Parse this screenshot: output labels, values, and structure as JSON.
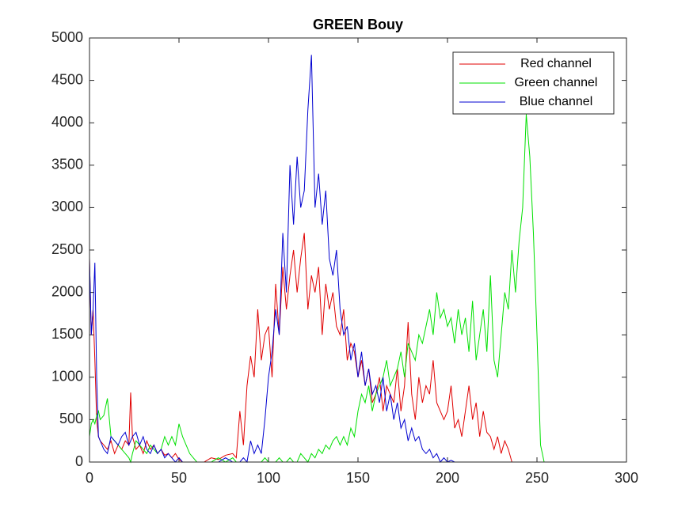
{
  "chart_data": {
    "type": "line",
    "title": "GREEN Bouy",
    "x": [
      0,
      1,
      2,
      3,
      4,
      5,
      6,
      8,
      10,
      12,
      14,
      16,
      18,
      20,
      22,
      23,
      24,
      26,
      28,
      30,
      32,
      34,
      36,
      38,
      40,
      42,
      44,
      46,
      48,
      50,
      52,
      54,
      56,
      58,
      60,
      64,
      68,
      72,
      76,
      80,
      82,
      84,
      86,
      88,
      90,
      92,
      94,
      96,
      98,
      100,
      102,
      104,
      106,
      108,
      110,
      112,
      114,
      116,
      118,
      120,
      122,
      124,
      126,
      128,
      130,
      132,
      134,
      136,
      138,
      140,
      142,
      144,
      146,
      148,
      150,
      152,
      154,
      156,
      158,
      160,
      162,
      164,
      166,
      168,
      170,
      172,
      174,
      176,
      178,
      180,
      182,
      184,
      186,
      188,
      190,
      192,
      194,
      196,
      198,
      200,
      202,
      204,
      206,
      208,
      210,
      212,
      214,
      216,
      218,
      220,
      222,
      224,
      226,
      228,
      230,
      232,
      234,
      236,
      238,
      240,
      242,
      244,
      246,
      248,
      250,
      252,
      254,
      256
    ],
    "series": [
      {
        "name": "Red channel",
        "color": "#e00000",
        "values": [
          2400,
          1500,
          1800,
          1200,
          500,
          300,
          250,
          200,
          150,
          250,
          100,
          200,
          150,
          250,
          200,
          820,
          300,
          150,
          200,
          100,
          250,
          150,
          200,
          100,
          150,
          80,
          100,
          50,
          100,
          30,
          0,
          0,
          0,
          0,
          0,
          0,
          50,
          30,
          80,
          100,
          50,
          600,
          200,
          900,
          1250,
          1000,
          1800,
          1200,
          1500,
          1600,
          1000,
          2100,
          1500,
          2300,
          1800,
          2200,
          2500,
          2000,
          2400,
          2700,
          1800,
          2200,
          2000,
          2300,
          1500,
          2100,
          1800,
          2000,
          1600,
          1500,
          1800,
          1200,
          1400,
          1300,
          1000,
          1200,
          900,
          1100,
          700,
          800,
          1000,
          600,
          900,
          800,
          700,
          1100,
          600,
          900,
          1650,
          800,
          500,
          1000,
          700,
          900,
          800,
          1200,
          700,
          600,
          500,
          600,
          900,
          400,
          500,
          300,
          600,
          900,
          500,
          700,
          300,
          600,
          350,
          300,
          150,
          300,
          100,
          250,
          150,
          0,
          0,
          0,
          0,
          0,
          0,
          0,
          0,
          0,
          0,
          0
        ]
      },
      {
        "name": "Green channel",
        "color": "#00e000",
        "values": [
          300,
          450,
          500,
          450,
          550,
          600,
          500,
          550,
          750,
          300,
          250,
          200,
          150,
          100,
          50,
          0,
          100,
          250,
          200,
          150,
          100,
          200,
          150,
          100,
          150,
          300,
          200,
          300,
          200,
          450,
          300,
          200,
          100,
          50,
          0,
          0,
          0,
          50,
          0,
          50,
          0,
          0,
          0,
          0,
          0,
          0,
          0,
          0,
          50,
          0,
          0,
          0,
          50,
          0,
          0,
          50,
          0,
          0,
          100,
          50,
          0,
          100,
          50,
          150,
          100,
          200,
          150,
          250,
          300,
          200,
          300,
          200,
          400,
          300,
          600,
          800,
          700,
          900,
          600,
          800,
          900,
          1000,
          1200,
          900,
          1000,
          1100,
          1300,
          1000,
          1400,
          1300,
          1200,
          1500,
          1400,
          1600,
          1800,
          1500,
          2000,
          1700,
          1800,
          1600,
          1700,
          1400,
          1800,
          1500,
          1700,
          1300,
          1900,
          1200,
          1500,
          1800,
          1300,
          2200,
          1200,
          1000,
          1500,
          2000,
          1800,
          2500,
          2000,
          2600,
          3000,
          4100,
          3600,
          2700,
          1500,
          200,
          0,
          0
        ]
      },
      {
        "name": "Blue channel",
        "color": "#0000d0",
        "values": [
          2400,
          1500,
          1800,
          2350,
          1000,
          300,
          250,
          150,
          100,
          300,
          250,
          200,
          300,
          350,
          200,
          250,
          300,
          350,
          200,
          300,
          150,
          100,
          200,
          100,
          150,
          50,
          100,
          50,
          0,
          50,
          0,
          0,
          0,
          0,
          0,
          0,
          0,
          0,
          50,
          0,
          0,
          0,
          50,
          0,
          250,
          100,
          200,
          100,
          500,
          1000,
          1300,
          1800,
          1500,
          2700,
          2000,
          3500,
          2800,
          3600,
          3000,
          3200,
          4150,
          4800,
          3000,
          3400,
          2800,
          3200,
          2400,
          2200,
          2500,
          1800,
          1500,
          1600,
          1200,
          1400,
          1000,
          1300,
          900,
          1100,
          800,
          900,
          700,
          1000,
          600,
          800,
          500,
          700,
          400,
          500,
          250,
          400,
          250,
          300,
          150,
          100,
          150,
          50,
          100,
          0,
          50,
          0,
          20,
          0,
          0,
          0,
          0,
          0,
          0,
          0,
          0,
          0,
          0,
          0,
          0,
          0,
          0,
          0,
          0,
          0,
          0,
          0,
          0,
          0,
          0,
          0,
          0,
          0,
          0,
          0
        ]
      }
    ],
    "xlim": [
      0,
      300
    ],
    "xticks": [
      0,
      50,
      100,
      150,
      200,
      250,
      300
    ],
    "ylim": [
      0,
      5000
    ],
    "yticks": [
      0,
      500,
      1000,
      1500,
      2000,
      2500,
      3000,
      3500,
      4000,
      4500,
      5000
    ],
    "legend": "upper right"
  }
}
